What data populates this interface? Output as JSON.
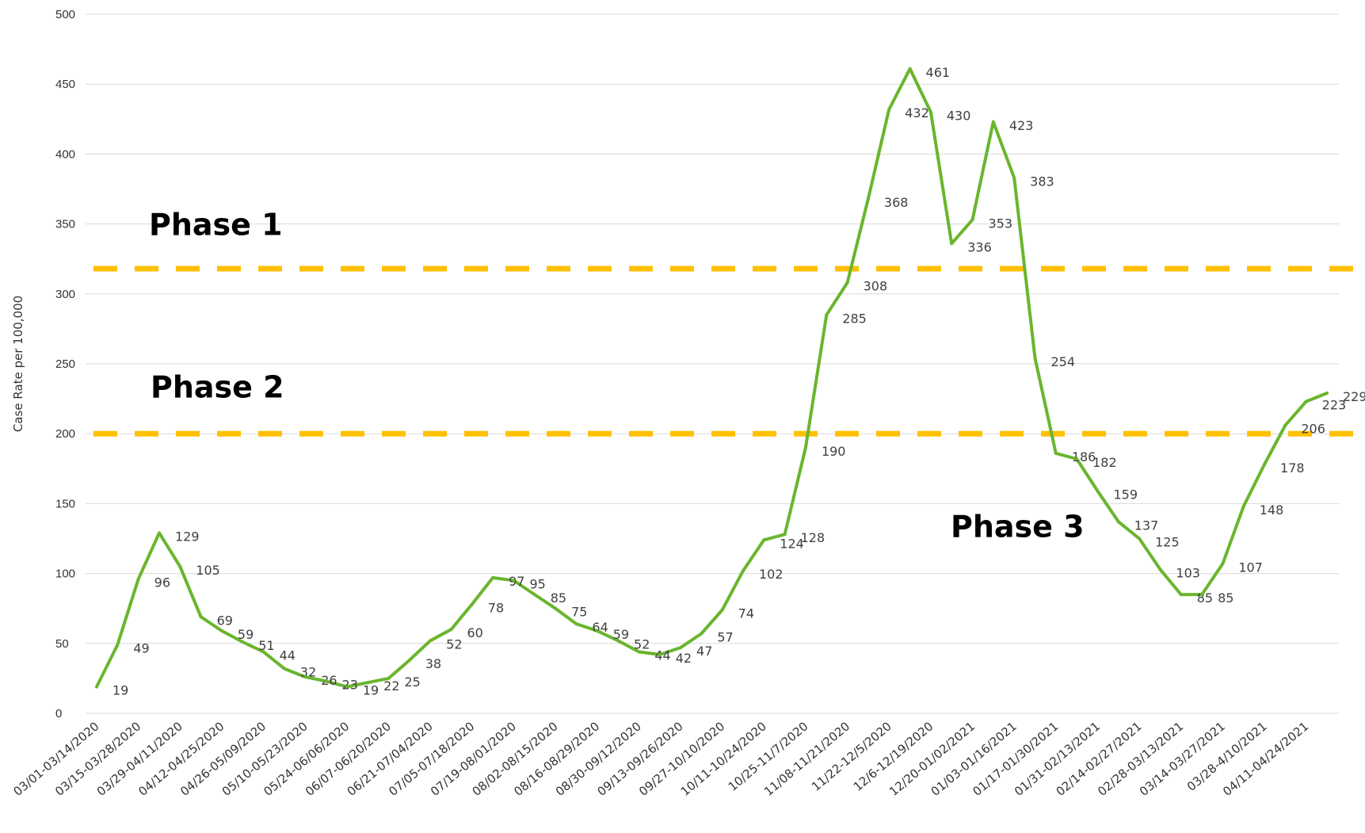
{
  "chart_data": {
    "type": "line",
    "ylabel": "Case Rate per 100,000",
    "ylim": [
      0,
      500
    ],
    "yticks": [
      "0",
      "50",
      "100",
      "150",
      "200",
      "250",
      "300",
      "350",
      "400",
      "450",
      "500"
    ],
    "grid": true,
    "x_tick_labels": [
      "03/01-03/14/2020",
      "03/15-03/28/2020",
      "03/29-04/11/2020",
      "04/12-04/25/2020",
      "04/26-05/09/2020",
      "05/10-05/23/2020",
      "05/24-06/06/2020",
      "06/07-06/20/2020",
      "06/21-07/04/2020",
      "07/05-07/18/2020",
      "07/19-08/01/2020",
      "08/02-08/15/2020",
      "08/16-08/29/2020",
      "08/30-09/12/2020",
      "09/13-09/26/2020",
      "09/27-10/10/2020",
      "10/11-10/24/2020",
      "10/25-11/7/2020",
      "11/08-11/21/2020",
      "11/22-12/5/2020",
      "12/6-12/19/2020",
      "12/20-01/02/2021",
      "01/03-01/16/2021",
      "01/17-01/30/2021",
      "01/31-02/13/2021",
      "02/14-02/27/2021",
      "02/28-03/13/2021",
      "03/14-03/27/2021",
      "03/28-4/10/2021",
      "04/11-04/24/2021"
    ],
    "series": [
      {
        "color": "#6ab52e",
        "values": [
          19,
          49,
          96,
          129,
          105,
          69,
          59,
          51,
          44,
          32,
          26,
          23,
          19,
          22,
          25,
          38,
          52,
          60,
          78,
          97,
          95,
          85,
          75,
          64,
          59,
          52,
          44,
          42,
          47,
          57,
          74,
          102,
          124,
          128,
          190,
          285,
          308,
          368,
          432,
          461,
          430,
          336,
          353,
          423,
          383,
          254,
          186,
          182,
          159,
          137,
          125,
          103,
          85,
          85,
          107,
          148,
          178,
          206,
          223,
          229
        ]
      }
    ],
    "thresholds": [
      {
        "value": 318,
        "color": "#ffc000",
        "label": "Phase 1"
      },
      {
        "value": 200,
        "color": "#ffc000",
        "label": "Phase 2"
      }
    ],
    "annotations": [
      {
        "text": "Phase 1"
      },
      {
        "text": "Phase 2"
      },
      {
        "text": "Phase 3"
      }
    ]
  }
}
